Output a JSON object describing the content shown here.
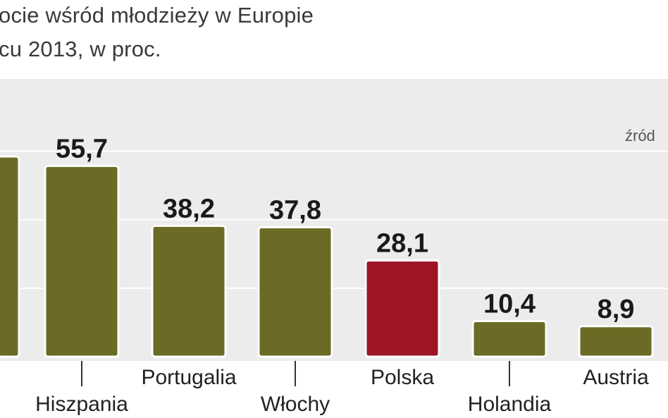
{
  "chart_data": {
    "type": "bar",
    "title_lines": [
      "ocie wśród młodzieży w Europie",
      "cu 2013, w proc."
    ],
    "source": "źród",
    "categories": [
      "a",
      "Hiszpania",
      "Portugalia",
      "Włochy",
      "Polska",
      "Holandia",
      "Austria"
    ],
    "values": [
      null,
      55.7,
      38.2,
      37.8,
      28.1,
      10.4,
      8.9
    ],
    "value_labels": [
      "",
      "55,7",
      "38,2",
      "37,8",
      "28,1",
      "10,4",
      "8,9"
    ],
    "ylim": [
      0,
      70
    ],
    "grid": true,
    "colors": {
      "bar": "#6b6b25",
      "highlight": "#9e1527",
      "background": "#ececec",
      "grid": "#ffffff"
    },
    "highlight_category": "Polska"
  }
}
